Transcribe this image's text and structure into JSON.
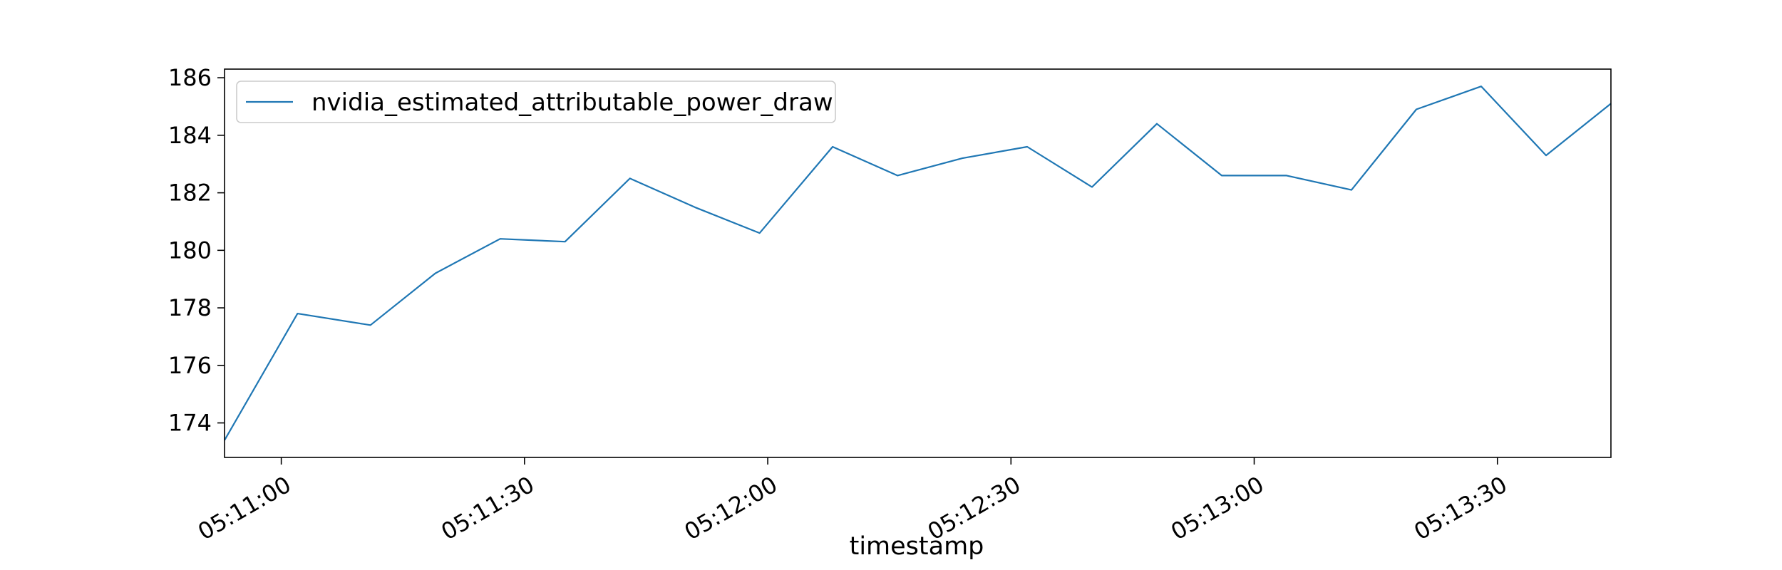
{
  "chart_data": {
    "type": "line",
    "xlabel": "timestamp",
    "ylabel": "",
    "x": [
      "05:10:53",
      "05:11:02",
      "05:11:11",
      "05:11:19",
      "05:11:27",
      "05:11:35",
      "05:11:43",
      "05:11:51",
      "05:11:59",
      "05:12:08",
      "05:12:16",
      "05:12:24",
      "05:12:32",
      "05:12:40",
      "05:12:48",
      "05:12:56",
      "05:13:04",
      "05:13:12",
      "05:13:20",
      "05:13:28",
      "05:13:36",
      "05:13:44"
    ],
    "series": [
      {
        "name": "nvidia_estimated_attributable_power_draw",
        "color": "#1f77b4",
        "values": [
          173.4,
          177.8,
          177.4,
          179.2,
          180.4,
          180.3,
          182.5,
          181.5,
          180.6,
          183.6,
          182.6,
          183.2,
          183.6,
          182.2,
          184.4,
          182.6,
          182.6,
          182.1,
          184.9,
          185.7,
          183.3,
          185.1
        ]
      }
    ],
    "xlim": [
      "05:10:53",
      "05:13:44"
    ],
    "ylim": [
      172.8,
      186.3
    ],
    "x_ticks": [
      "05:11:00",
      "05:11:30",
      "05:12:00",
      "05:12:30",
      "05:13:00",
      "05:13:30"
    ],
    "y_ticks": [
      174,
      176,
      178,
      180,
      182,
      184,
      186
    ],
    "legend_position": "upper-left",
    "grid": false
  }
}
